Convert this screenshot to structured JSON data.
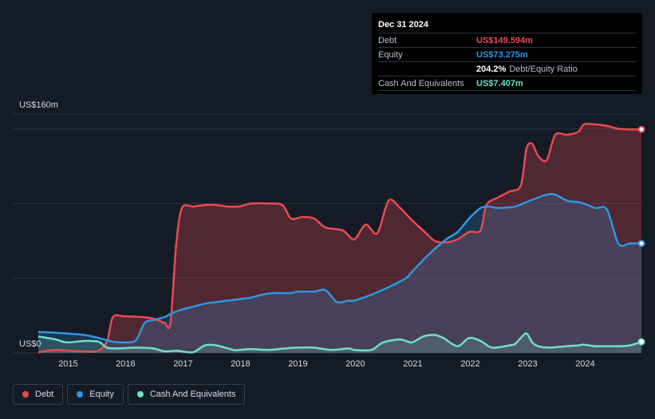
{
  "tooltip": {
    "date": "Dec 31 2024",
    "debt_label": "Debt",
    "debt_value": "US$149.594m",
    "equity_label": "Equity",
    "equity_value": "US$73.275m",
    "ratio_value": "204.2%",
    "ratio_label": "Debt/Equity Ratio",
    "cash_label": "Cash And Equivalents",
    "cash_value": "US$7.407m"
  },
  "legend": {
    "debt": "Debt",
    "equity": "Equity",
    "cash": "Cash And Equivalents"
  },
  "colors": {
    "background": "#151b26",
    "debt": "#e84a50",
    "equity": "#2e96e3",
    "cash": "#6ee0c9",
    "grid": "#2a303b"
  },
  "chart_data": {
    "type": "area",
    "y_top_label": "US$160m",
    "y_bottom_label": "US$0",
    "ylim": [
      0,
      160
    ],
    "xlim": [
      2014.5,
      2025.0
    ],
    "x_ticks": [
      "2015",
      "2016",
      "2017",
      "2018",
      "2019",
      "2020",
      "2021",
      "2022",
      "2023",
      "2024"
    ],
    "grid": true,
    "legend_position": "bottom-left",
    "series": [
      {
        "name": "Debt",
        "key": "debt",
        "x": [
          2014.5,
          2014.8,
          2015.0,
          2015.3,
          2015.55,
          2015.7,
          2015.8,
          2016.0,
          2016.3,
          2016.5,
          2016.7,
          2016.8,
          2016.9,
          2017.0,
          2017.2,
          2017.4,
          2017.6,
          2017.8,
          2018.0,
          2018.2,
          2018.5,
          2018.75,
          2018.9,
          2019.1,
          2019.3,
          2019.5,
          2019.8,
          2020.0,
          2020.2,
          2020.4,
          2020.6,
          2020.8,
          2021.0,
          2021.2,
          2021.4,
          2021.6,
          2021.8,
          2022.0,
          2022.2,
          2022.3,
          2022.5,
          2022.7,
          2022.9,
          2023.0,
          2023.1,
          2023.2,
          2023.35,
          2023.5,
          2023.7,
          2023.9,
          2024.0,
          2024.2,
          2024.4,
          2024.6,
          2024.8,
          2025.0
        ],
        "values": [
          0.5,
          2,
          1.5,
          1,
          1.5,
          8,
          24,
          24.5,
          24,
          23,
          20,
          20,
          72,
          97,
          98,
          99,
          99,
          98,
          98,
          100,
          100,
          99,
          90,
          91,
          90,
          84,
          82,
          76,
          86,
          80,
          102,
          97,
          89,
          82,
          75,
          74,
          76,
          81,
          82,
          99,
          104,
          108,
          112,
          137,
          140,
          132,
          129,
          146,
          146,
          148,
          153,
          153,
          152,
          150,
          149.6,
          149.6
        ]
      },
      {
        "name": "Equity",
        "key": "equity",
        "x": [
          2014.5,
          2014.8,
          2015.0,
          2015.3,
          2015.6,
          2015.8,
          2016.0,
          2016.2,
          2016.35,
          2016.5,
          2016.7,
          2016.8,
          2017.0,
          2017.2,
          2017.4,
          2017.6,
          2017.8,
          2018.0,
          2018.2,
          2018.4,
          2018.6,
          2018.9,
          2019.0,
          2019.3,
          2019.5,
          2019.7,
          2019.9,
          2020.0,
          2020.3,
          2020.6,
          2020.9,
          2021.0,
          2021.3,
          2021.6,
          2021.8,
          2022.0,
          2022.2,
          2022.35,
          2022.5,
          2022.8,
          2023.0,
          2023.2,
          2023.35,
          2023.5,
          2023.7,
          2023.9,
          2024.0,
          2024.2,
          2024.4,
          2024.6,
          2024.8,
          2025.0
        ],
        "values": [
          14,
          13.5,
          13,
          12,
          9.5,
          7.5,
          7,
          8.5,
          20,
          22,
          24,
          26,
          29,
          31,
          33,
          34,
          35,
          36,
          37,
          39,
          40,
          40,
          41,
          41,
          42,
          34,
          35,
          35,
          39,
          44,
          50,
          54,
          66,
          76,
          81,
          90,
          97,
          98,
          97,
          98,
          101,
          104,
          106,
          106,
          102,
          101,
          100,
          97,
          96,
          73,
          73.3,
          73.3
        ]
      },
      {
        "name": "Cash And Equivalents",
        "key": "cash",
        "x": [
          2014.5,
          2014.8,
          2015.0,
          2015.3,
          2015.55,
          2015.7,
          2015.9,
          2016.2,
          2016.5,
          2016.7,
          2016.9,
          2017.0,
          2017.2,
          2017.4,
          2017.6,
          2017.9,
          2018.0,
          2018.2,
          2018.5,
          2018.8,
          2019.0,
          2019.3,
          2019.6,
          2019.9,
          2020.0,
          2020.3,
          2020.5,
          2020.8,
          2021.0,
          2021.2,
          2021.4,
          2021.55,
          2021.8,
          2022.0,
          2022.2,
          2022.4,
          2022.7,
          2022.8,
          2022.9,
          2023.0,
          2023.1,
          2023.2,
          2023.4,
          2023.7,
          2023.9,
          2024.0,
          2024.2,
          2024.4,
          2024.6,
          2024.8,
          2025.0
        ],
        "values": [
          11,
          9,
          7,
          8,
          7.5,
          3.5,
          3,
          3.5,
          3,
          1,
          1.5,
          1,
          0.5,
          5,
          5,
          2,
          2,
          2.5,
          2,
          3,
          3.5,
          3.5,
          2,
          3,
          2,
          2,
          7,
          9,
          7,
          11,
          12,
          10,
          4.5,
          10,
          8,
          3.5,
          5,
          6,
          10,
          13,
          7,
          4.5,
          3.5,
          4.5,
          5,
          5.5,
          4.5,
          4.5,
          4.5,
          5,
          7.4
        ]
      }
    ]
  }
}
